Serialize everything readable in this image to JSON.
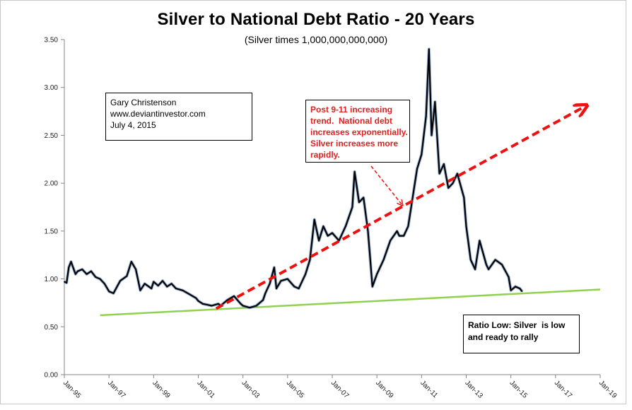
{
  "chart_data": {
    "type": "line",
    "title": "Silver to National Debt Ratio - 20 Years",
    "subtitle": "(Silver times 1,000,000,000,000)",
    "xlabel": "",
    "ylabel": "",
    "ylim": [
      0,
      3.5
    ],
    "yticks": [
      "0.00",
      "0.50",
      "1.00",
      "1.50",
      "2.00",
      "2.50",
      "3.00",
      "3.50"
    ],
    "xlim": [
      1995.0,
      2019.0
    ],
    "xtick_labels": [
      "Jan-95",
      "Jan-97",
      "Jan-99",
      "Jan-01",
      "Jan-03",
      "Jan-05",
      "Jan-07",
      "Jan-09",
      "Jan-11",
      "Jan-13",
      "Jan-15",
      "Jan-17",
      "Jan-19"
    ],
    "grid": false,
    "series": [
      {
        "color": "#000000",
        "x": [
          1995.0,
          1995.1,
          1995.2,
          1995.3,
          1995.5,
          1995.6,
          1995.8,
          1996.0,
          1996.2,
          1996.4,
          1996.6,
          1996.8,
          1997.0,
          1997.2,
          1997.5,
          1997.8,
          1998.0,
          1998.2,
          1998.4,
          1998.6,
          1998.9,
          1999.0,
          1999.2,
          1999.4,
          1999.6,
          1999.8,
          2000.0,
          2000.3,
          2000.6,
          2000.9,
          2001.0,
          2001.2,
          2001.4,
          2001.6,
          2001.9,
          2002.0,
          2002.3,
          2002.6,
          2002.9,
          2003.0,
          2003.3,
          2003.6,
          2003.9,
          2004.0,
          2004.2,
          2004.4,
          2004.5,
          2004.7,
          2005.0,
          2005.3,
          2005.5,
          2005.8,
          2006.0,
          2006.2,
          2006.4,
          2006.6,
          2006.8,
          2007.0,
          2007.3,
          2007.6,
          2007.9,
          2008.0,
          2008.2,
          2008.4,
          2008.6,
          2008.8,
          2009.0,
          2009.3,
          2009.6,
          2009.9,
          2010.0,
          2010.2,
          2010.4,
          2010.6,
          2010.8,
          2011.0,
          2011.2,
          2011.33,
          2011.45,
          2011.6,
          2011.8,
          2012.0,
          2012.2,
          2012.4,
          2012.6,
          2012.9,
          2013.0,
          2013.2,
          2013.4,
          2013.6,
          2013.9,
          2014.0,
          2014.3,
          2014.6,
          2014.9,
          2015.0,
          2015.2,
          2015.4,
          2015.5
        ],
        "values": [
          0.97,
          0.96,
          1.12,
          1.18,
          1.05,
          1.08,
          1.1,
          1.05,
          1.08,
          1.02,
          1.0,
          0.95,
          0.87,
          0.85,
          0.98,
          1.03,
          1.18,
          1.1,
          0.88,
          0.95,
          0.9,
          0.97,
          0.93,
          0.98,
          0.92,
          0.95,
          0.9,
          0.88,
          0.84,
          0.8,
          0.77,
          0.74,
          0.73,
          0.72,
          0.74,
          0.72,
          0.78,
          0.82,
          0.74,
          0.72,
          0.7,
          0.72,
          0.78,
          0.85,
          0.95,
          1.12,
          0.9,
          0.98,
          1.0,
          0.92,
          0.9,
          1.05,
          1.2,
          1.62,
          1.4,
          1.55,
          1.45,
          1.48,
          1.4,
          1.55,
          1.75,
          2.12,
          1.8,
          1.85,
          1.5,
          0.92,
          1.05,
          1.2,
          1.4,
          1.5,
          1.45,
          1.45,
          1.55,
          1.85,
          2.15,
          2.3,
          2.7,
          3.4,
          2.5,
          2.85,
          2.1,
          2.2,
          1.95,
          2.0,
          2.1,
          1.85,
          1.55,
          1.2,
          1.1,
          1.4,
          1.15,
          1.1,
          1.2,
          1.15,
          1.02,
          0.88,
          0.92,
          0.9,
          0.87
        ]
      }
    ],
    "annotations": {
      "author_lines": [
        "Gary Christenson",
        "www.deviantinvestor.com",
        "July 4, 2015"
      ],
      "note_lines": [
        "Post 9-11 increasing",
        "trend.  National debt",
        "increases exponentially.",
        "Silver increases more",
        "rapidly."
      ],
      "low_lines": [
        "Ratio Low: Silver  is low",
        "and ready to rally"
      ]
    },
    "trend_up": {
      "color": "#ee1111",
      "x": [
        2001.8,
        2018.3
      ],
      "values": [
        0.69,
        2.8
      ]
    },
    "trend_low": {
      "color": "#92d050",
      "x": [
        1996.6,
        2019.0
      ],
      "values": [
        0.62,
        0.89
      ]
    },
    "note_arrow_color": "#ee1111"
  }
}
